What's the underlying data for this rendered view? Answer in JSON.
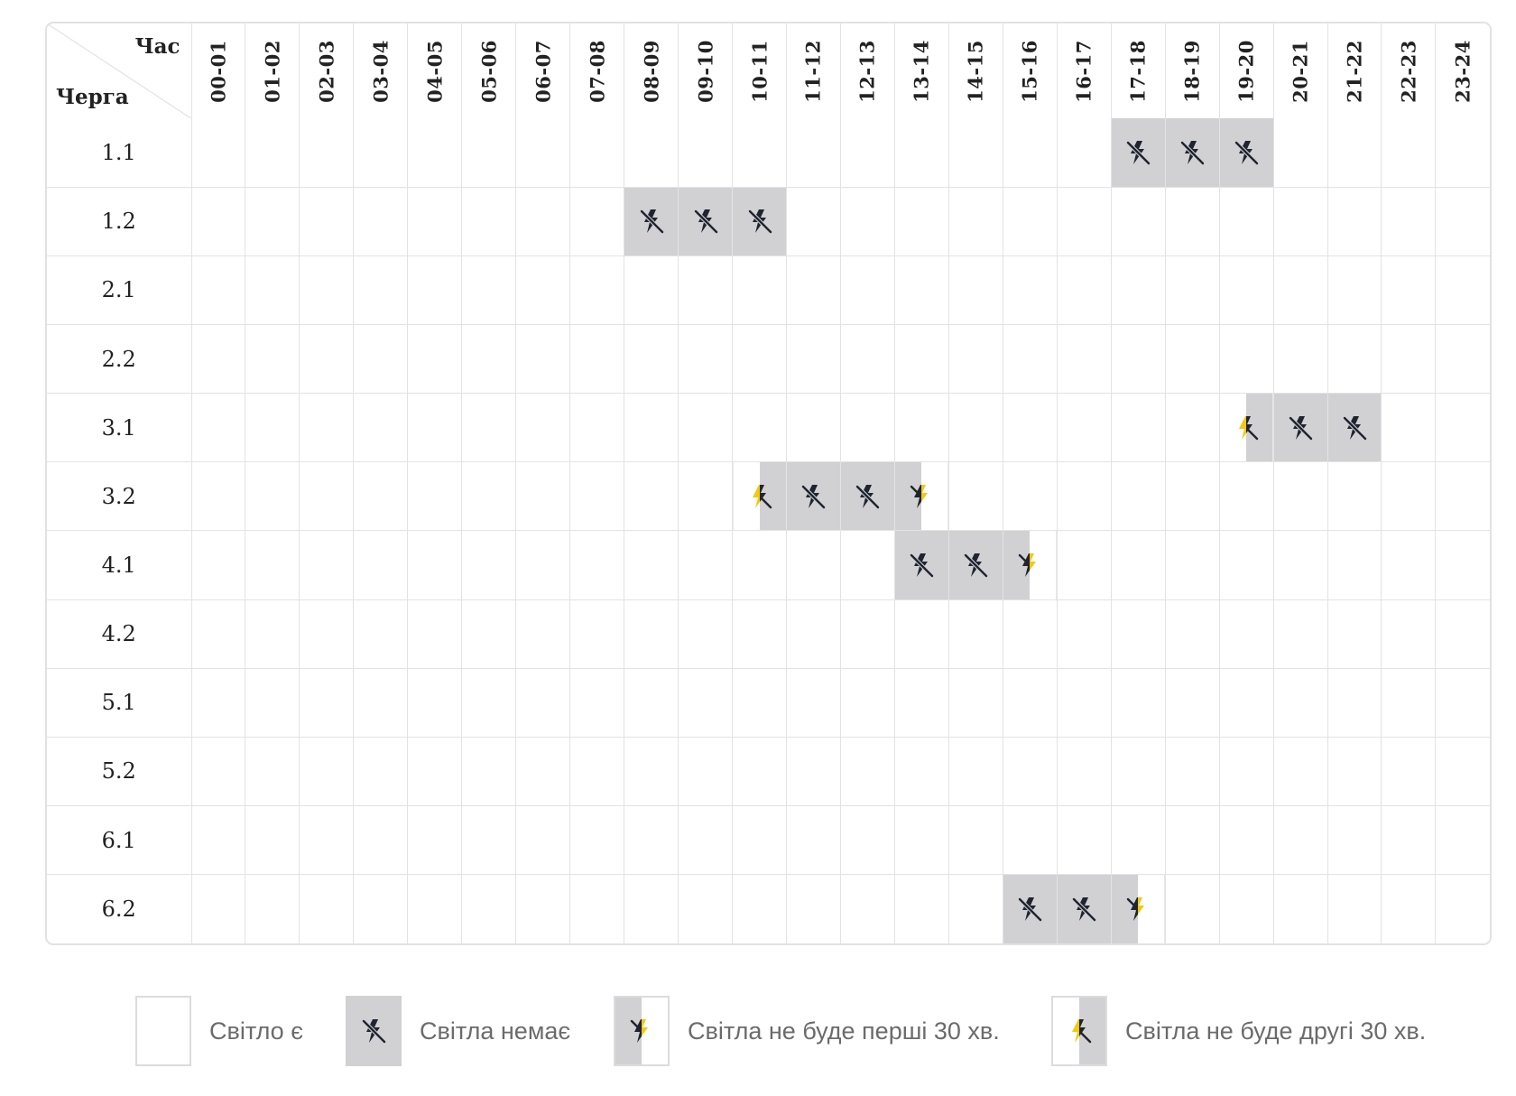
{
  "header": {
    "hour_label": "Час",
    "queue_label": "Черга",
    "hours": [
      "00-01",
      "01-02",
      "02-03",
      "03-04",
      "04-05",
      "05-06",
      "06-07",
      "07-08",
      "08-09",
      "09-10",
      "10-11",
      "11-12",
      "12-13",
      "13-14",
      "14-15",
      "15-16",
      "16-17",
      "17-18",
      "18-19",
      "19-20",
      "20-21",
      "21-22",
      "22-23",
      "23-24"
    ]
  },
  "queues": [
    {
      "name": "1.1",
      "slots": [
        "on",
        "on",
        "on",
        "on",
        "on",
        "on",
        "on",
        "on",
        "on",
        "on",
        "on",
        "on",
        "on",
        "on",
        "on",
        "on",
        "on",
        "off",
        "off",
        "off",
        "on",
        "on",
        "on",
        "on"
      ]
    },
    {
      "name": "1.2",
      "slots": [
        "on",
        "on",
        "on",
        "on",
        "on",
        "on",
        "on",
        "on",
        "off",
        "off",
        "off",
        "on",
        "on",
        "on",
        "on",
        "on",
        "on",
        "on",
        "on",
        "on",
        "on",
        "on",
        "on",
        "on"
      ]
    },
    {
      "name": "2.1",
      "slots": [
        "on",
        "on",
        "on",
        "on",
        "on",
        "on",
        "on",
        "on",
        "on",
        "on",
        "on",
        "on",
        "on",
        "on",
        "on",
        "on",
        "on",
        "on",
        "on",
        "on",
        "on",
        "on",
        "on",
        "on"
      ]
    },
    {
      "name": "2.2",
      "slots": [
        "on",
        "on",
        "on",
        "on",
        "on",
        "on",
        "on",
        "on",
        "on",
        "on",
        "on",
        "on",
        "on",
        "on",
        "on",
        "on",
        "on",
        "on",
        "on",
        "on",
        "on",
        "on",
        "on",
        "on"
      ]
    },
    {
      "name": "3.1",
      "slots": [
        "on",
        "on",
        "on",
        "on",
        "on",
        "on",
        "on",
        "on",
        "on",
        "on",
        "on",
        "on",
        "on",
        "on",
        "on",
        "on",
        "on",
        "on",
        "on",
        "second",
        "off",
        "off",
        "on",
        "on"
      ]
    },
    {
      "name": "3.2",
      "slots": [
        "on",
        "on",
        "on",
        "on",
        "on",
        "on",
        "on",
        "on",
        "on",
        "on",
        "second",
        "off",
        "off",
        "first",
        "on",
        "on",
        "on",
        "on",
        "on",
        "on",
        "on",
        "on",
        "on",
        "on"
      ]
    },
    {
      "name": "4.1",
      "slots": [
        "on",
        "on",
        "on",
        "on",
        "on",
        "on",
        "on",
        "on",
        "on",
        "on",
        "on",
        "on",
        "on",
        "off",
        "off",
        "first",
        "on",
        "on",
        "on",
        "on",
        "on",
        "on",
        "on",
        "on"
      ]
    },
    {
      "name": "4.2",
      "slots": [
        "on",
        "on",
        "on",
        "on",
        "on",
        "on",
        "on",
        "on",
        "on",
        "on",
        "on",
        "on",
        "on",
        "on",
        "on",
        "on",
        "on",
        "on",
        "on",
        "on",
        "on",
        "on",
        "on",
        "on"
      ]
    },
    {
      "name": "5.1",
      "slots": [
        "on",
        "on",
        "on",
        "on",
        "on",
        "on",
        "on",
        "on",
        "on",
        "on",
        "on",
        "on",
        "on",
        "on",
        "on",
        "on",
        "on",
        "on",
        "on",
        "on",
        "on",
        "on",
        "on",
        "on"
      ]
    },
    {
      "name": "5.2",
      "slots": [
        "on",
        "on",
        "on",
        "on",
        "on",
        "on",
        "on",
        "on",
        "on",
        "on",
        "on",
        "on",
        "on",
        "on",
        "on",
        "on",
        "on",
        "on",
        "on",
        "on",
        "on",
        "on",
        "on",
        "on"
      ]
    },
    {
      "name": "6.1",
      "slots": [
        "on",
        "on",
        "on",
        "on",
        "on",
        "on",
        "on",
        "on",
        "on",
        "on",
        "on",
        "on",
        "on",
        "on",
        "on",
        "on",
        "on",
        "on",
        "on",
        "on",
        "on",
        "on",
        "on",
        "on"
      ]
    },
    {
      "name": "6.2",
      "slots": [
        "on",
        "on",
        "on",
        "on",
        "on",
        "on",
        "on",
        "on",
        "on",
        "on",
        "on",
        "on",
        "on",
        "on",
        "on",
        "off",
        "off",
        "first",
        "on",
        "on",
        "on",
        "on",
        "on",
        "on"
      ]
    }
  ],
  "legend": {
    "on": "Світло є",
    "off": "Світла немає",
    "first": "Світла не буде перші 30 хв.",
    "second": "Світла не буде другі 30 хв."
  },
  "colors": {
    "outage_gray": "#d1d1d3",
    "bolt_yellow": "#f2c811",
    "icon_dark": "#1f2430",
    "grid_line": "#e3e3e3",
    "legend_text": "#6b6b6b"
  },
  "icons": {
    "off": "no-power-icon",
    "first": "no-power-first-half-icon",
    "second": "no-power-second-half-icon"
  }
}
